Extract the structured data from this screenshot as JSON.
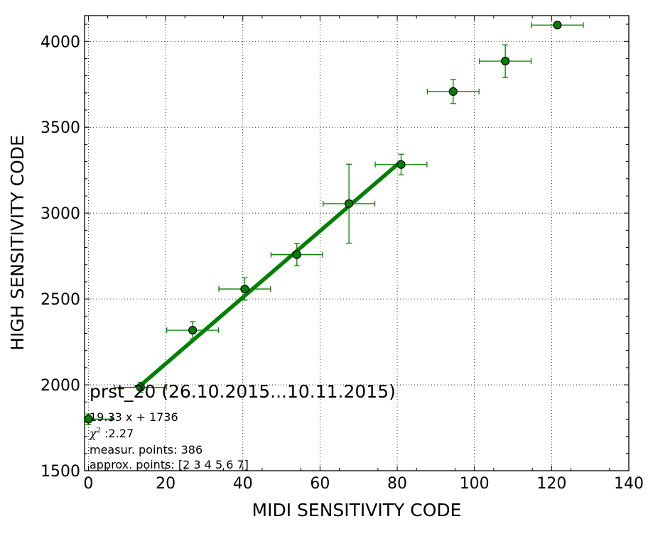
{
  "chart_data": {
    "type": "scatter",
    "xlabel": "MIDI SENSITIVITY CODE",
    "ylabel": "HIGH SENSITIVITY CODE",
    "xlim": [
      -1,
      140
    ],
    "ylim": [
      1500,
      4150
    ],
    "xticks": [
      0,
      20,
      40,
      60,
      80,
      100,
      120,
      140
    ],
    "yticks": [
      1500,
      2000,
      2500,
      3000,
      3500,
      4000
    ],
    "grid": true,
    "colors": {
      "series": "#008000",
      "marker_edge": "#000000"
    },
    "points": [
      {
        "x": 0,
        "y": 1800,
        "xerr_minus": 0,
        "xerr_plus": 0,
        "yerr_minus": 30,
        "yerr_plus": 30
      },
      {
        "x": 13.5,
        "y": 1985,
        "xerr_minus": 6.7,
        "xerr_plus": 6.7,
        "yerr_minus": 30,
        "yerr_plus": 30
      },
      {
        "x": 27,
        "y": 2318,
        "xerr_minus": 6.7,
        "xerr_plus": 6.7,
        "yerr_minus": 50,
        "yerr_plus": 50
      },
      {
        "x": 40.5,
        "y": 2558,
        "xerr_minus": 6.7,
        "xerr_plus": 6.7,
        "yerr_minus": 65,
        "yerr_plus": 65
      },
      {
        "x": 54,
        "y": 2758,
        "xerr_minus": 6.7,
        "xerr_plus": 6.7,
        "yerr_minus": 65,
        "yerr_plus": 65
      },
      {
        "x": 67.5,
        "y": 3055,
        "xerr_minus": 6.7,
        "xerr_plus": 6.7,
        "yerr_minus": 230,
        "yerr_plus": 230
      },
      {
        "x": 81,
        "y": 3283,
        "xerr_minus": 6.7,
        "xerr_plus": 6.7,
        "yerr_minus": 60,
        "yerr_plus": 60
      },
      {
        "x": 94.5,
        "y": 3708,
        "xerr_minus": 6.7,
        "xerr_plus": 6.7,
        "yerr_minus": 70,
        "yerr_plus": 70
      },
      {
        "x": 108,
        "y": 3885,
        "xerr_minus": 6.7,
        "xerr_plus": 6.7,
        "yerr_minus": 95,
        "yerr_plus": 95
      },
      {
        "x": 121.5,
        "y": 4095,
        "xerr_minus": 6.7,
        "xerr_plus": 6.7,
        "yerr_minus": 0,
        "yerr_plus": 0
      }
    ],
    "arrow": {
      "x_from": 0,
      "x_to": 7,
      "y": 1800
    },
    "fit": {
      "slope": 19.33,
      "intercept": 1736,
      "x_from": 13.5,
      "x_to": 81
    },
    "annotations": {
      "title": "prst_20 (26.10.2015...10.11.2015)",
      "equation": "19.33 x + 1736",
      "chi_symbol": "χ",
      "chi_exp": "2",
      "chi_value": " :2.27",
      "measured": "measur. points: 386",
      "approx": "approx. points: [2 3 4 5 6 7]"
    }
  }
}
